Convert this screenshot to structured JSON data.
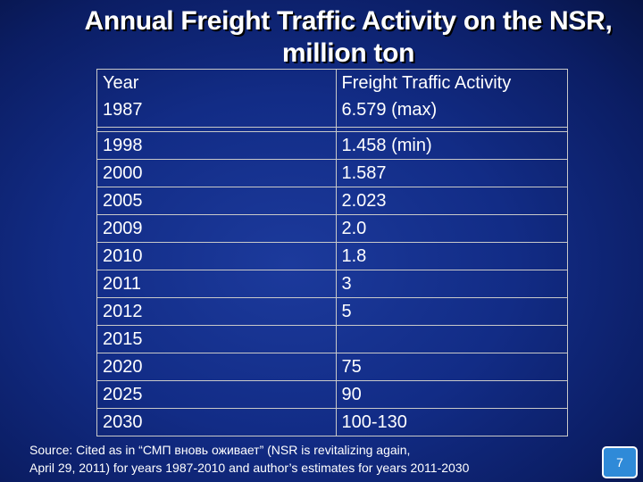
{
  "slide": {
    "title_line1": "Annual Freight Traffic Activity on the NSR,",
    "title_line2": "million ton"
  },
  "table": {
    "columns": [
      "Year",
      "Freight Traffic Activity"
    ],
    "header_row": {
      "year": "1987",
      "value": "6.579 (max)"
    },
    "rows": [
      {
        "year": "1998",
        "value": "1.458 (min)"
      },
      {
        "year": "2000",
        "value": "1.587"
      },
      {
        "year": "2005",
        "value": "2.023"
      },
      {
        "year": "2009",
        "value": "2.0"
      },
      {
        "year": "2010",
        "value": "1.8"
      },
      {
        "year": "2011",
        "value": "3"
      },
      {
        "year": "2012",
        "value": "5"
      },
      {
        "year": "2015",
        "value": ""
      },
      {
        "year": "2020",
        "value": "75"
      },
      {
        "year": "2025",
        "value": "90"
      },
      {
        "year": "2030",
        "value": "100-130"
      }
    ]
  },
  "source": {
    "line1": "Source: Cited as in “СМП вновь оживает” (NSR is revitalizing again,",
    "line2": "April 29, 2011) for years 1987-2010 and author’s estimates for years 2011-2030"
  },
  "page_number": "7",
  "colors": {
    "background": "#122c86",
    "text": "#ffffff",
    "grid": "#c9c9c9",
    "badge": "#2f8ad8"
  }
}
